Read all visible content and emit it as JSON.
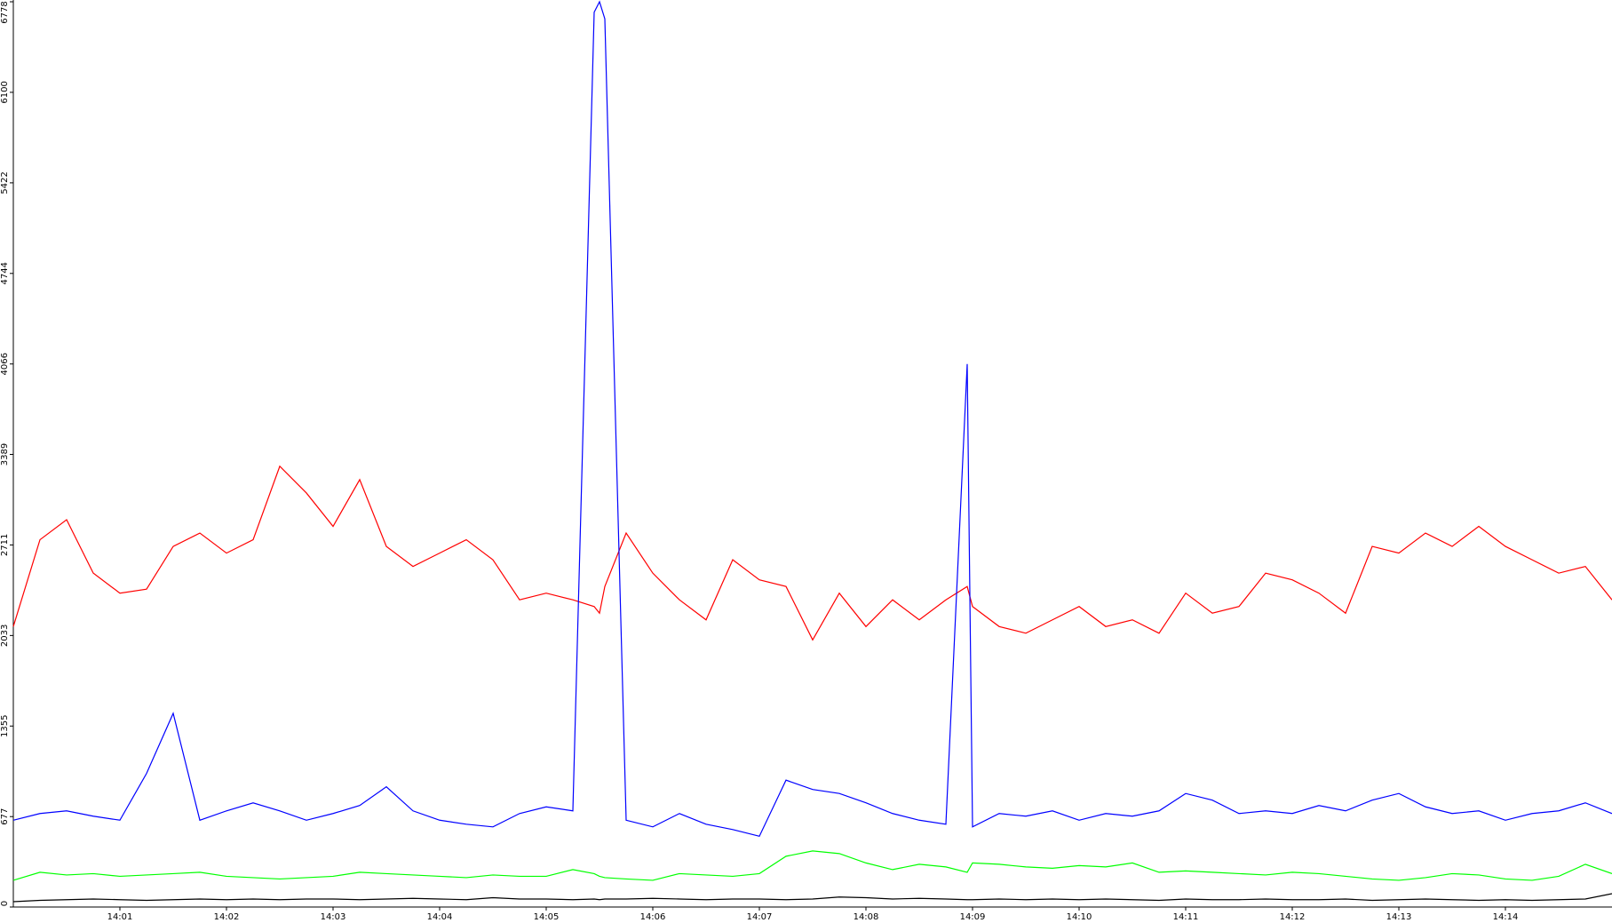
{
  "chart_data": {
    "type": "line",
    "x": [
      0,
      0.25,
      0.5,
      0.75,
      1,
      1.25,
      1.5,
      1.75,
      2,
      2.25,
      2.5,
      2.75,
      3,
      3.25,
      3.5,
      3.75,
      4,
      4.25,
      4.5,
      4.75,
      5,
      5.25,
      5.45,
      5.5,
      5.55,
      5.75,
      6,
      6.25,
      6.5,
      6.75,
      7,
      7.25,
      7.5,
      7.75,
      8,
      8.25,
      8.5,
      8.75,
      8.95,
      9,
      9.25,
      9.5,
      9.75,
      10,
      10.25,
      10.5,
      10.75,
      11,
      11.25,
      11.5,
      11.75,
      12,
      12.25,
      12.5,
      12.75,
      13,
      13.25,
      13.5,
      13.75,
      14,
      14.25,
      14.5,
      14.75,
      15
    ],
    "series": [
      {
        "color": "#ff0000",
        "values": [
          2100,
          2750,
          2900,
          2500,
          2350,
          2380,
          2700,
          2800,
          2650,
          2750,
          3300,
          3100,
          2850,
          3200,
          2700,
          2550,
          2650,
          2750,
          2600,
          2300,
          2350,
          2300,
          2250,
          2200,
          2400,
          2800,
          2500,
          2300,
          2150,
          2600,
          2450,
          2400,
          2000,
          2350,
          2100,
          2300,
          2150,
          2300,
          2400,
          2250,
          2100,
          2050,
          2150,
          2250,
          2100,
          2150,
          2050,
          2350,
          2200,
          2250,
          2500,
          2450,
          2350,
          2200,
          2700,
          2650,
          2800,
          2700,
          2850,
          2700,
          2600,
          2500,
          2550,
          2300
        ]
      },
      {
        "color": "#0000ff",
        "values": [
          650,
          700,
          720,
          680,
          650,
          1000,
          1450,
          650,
          720,
          780,
          720,
          650,
          700,
          760,
          900,
          720,
          650,
          620,
          600,
          700,
          750,
          720,
          6700,
          6778,
          6650,
          650,
          600,
          700,
          620,
          580,
          530,
          950,
          880,
          850,
          780,
          700,
          650,
          620,
          4066,
          600,
          700,
          680,
          720,
          650,
          700,
          680,
          720,
          850,
          800,
          700,
          720,
          700,
          760,
          720,
          800,
          850,
          750,
          700,
          720,
          650,
          700,
          720,
          780,
          700
        ]
      },
      {
        "color": "#00ff00",
        "values": [
          200,
          260,
          240,
          250,
          230,
          240,
          250,
          260,
          230,
          220,
          210,
          220,
          230,
          260,
          250,
          240,
          230,
          220,
          240,
          230,
          230,
          280,
          250,
          230,
          220,
          210,
          200,
          250,
          240,
          230,
          250,
          380,
          420,
          400,
          330,
          280,
          320,
          300,
          260,
          330,
          320,
          300,
          290,
          310,
          300,
          330,
          260,
          270,
          260,
          250,
          240,
          260,
          250,
          230,
          210,
          200,
          220,
          250,
          240,
          210,
          200,
          230,
          320,
          250
        ]
      },
      {
        "color": "#000000",
        "values": [
          40,
          50,
          55,
          60,
          55,
          50,
          55,
          60,
          55,
          60,
          55,
          60,
          60,
          55,
          60,
          65,
          60,
          55,
          70,
          60,
          60,
          55,
          60,
          55,
          60,
          60,
          65,
          60,
          55,
          60,
          60,
          55,
          60,
          75,
          70,
          60,
          65,
          60,
          55,
          55,
          60,
          55,
          60,
          55,
          60,
          55,
          50,
          60,
          55,
          55,
          60,
          55,
          55,
          60,
          50,
          55,
          60,
          55,
          50,
          55,
          50,
          55,
          60,
          100
        ]
      }
    ],
    "xlim": [
      0,
      15
    ],
    "xticks": [
      {
        "value": 1,
        "label": "14:01"
      },
      {
        "value": 2,
        "label": "14:02"
      },
      {
        "value": 3,
        "label": "14:03"
      },
      {
        "value": 4,
        "label": "14:04"
      },
      {
        "value": 5,
        "label": "14:05"
      },
      {
        "value": 6,
        "label": "14:06"
      },
      {
        "value": 7,
        "label": "14:07"
      },
      {
        "value": 8,
        "label": "14:08"
      },
      {
        "value": 9,
        "label": "14:09"
      },
      {
        "value": 10,
        "label": "14:10"
      },
      {
        "value": 11,
        "label": "14:11"
      },
      {
        "value": 12,
        "label": "14:12"
      },
      {
        "value": 13,
        "label": "14:13"
      },
      {
        "value": 14,
        "label": "14:14"
      }
    ],
    "ylim": [
      0,
      6778
    ],
    "yticks": [
      0,
      677,
      1355,
      2033,
      2711,
      3389,
      4066,
      4744,
      5422,
      6100,
      6778
    ],
    "grid": false
  }
}
